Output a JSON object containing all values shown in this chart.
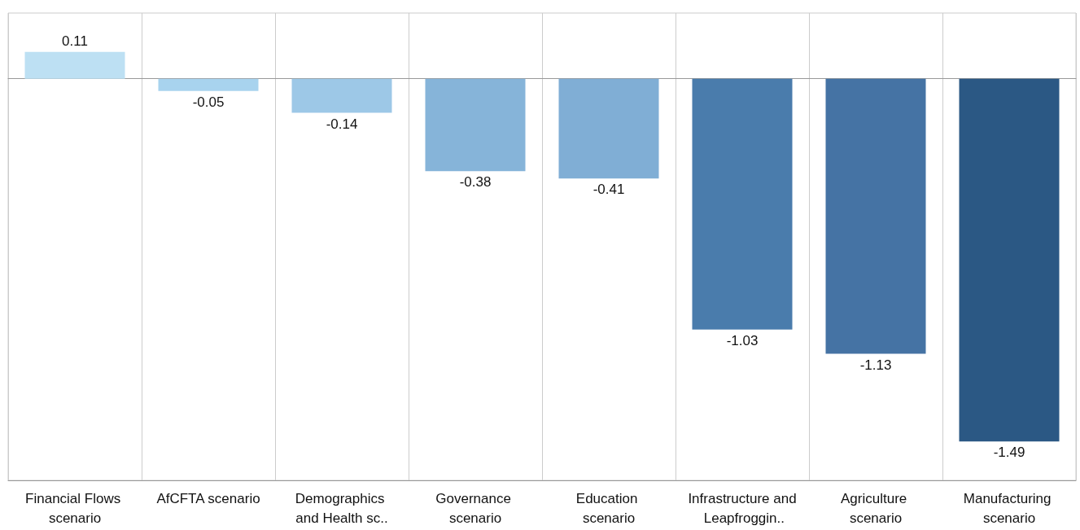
{
  "chart_data": {
    "type": "bar",
    "categories": [
      "Financial Flows scenario",
      "AfCFTA scenario",
      "Demographics and Health sc..",
      "Governance scenario",
      "Education scenario",
      "Infrastructure and Leapfroggin..",
      "Agriculture scenario",
      "Manufacturing scenario"
    ],
    "values": [
      0.11,
      -0.05,
      -0.14,
      -0.38,
      -0.41,
      -1.03,
      -1.13,
      -1.49
    ],
    "colors": [
      "#bde0f3",
      "#a8d3ee",
      "#9dc8e7",
      "#86b4d9",
      "#80aed5",
      "#4a7cac",
      "#4573a4",
      "#2b5884"
    ],
    "data_labels": true,
    "grid": "x"
  }
}
